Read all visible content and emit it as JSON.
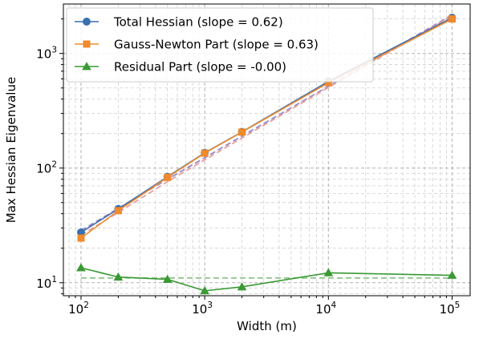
{
  "chart_data": {
    "type": "line",
    "xlabel": "Width (m)",
    "ylabel": "Max Hessian Eigenvalue",
    "xscale": "log",
    "yscale": "log",
    "xlim": [
      72,
      140000
    ],
    "ylim": [
      7.7,
      2700
    ],
    "grid": "major and minor, dashed",
    "legend_position": "top-left",
    "x_ticks": [
      {
        "value": 100,
        "base": "10",
        "exp": "2"
      },
      {
        "value": 1000,
        "base": "10",
        "exp": "3"
      },
      {
        "value": 10000,
        "base": "10",
        "exp": "4"
      },
      {
        "value": 100000,
        "base": "10",
        "exp": "5"
      }
    ],
    "y_ticks": [
      {
        "value": 10,
        "base": "10",
        "exp": "1"
      },
      {
        "value": 100,
        "base": "10",
        "exp": "2"
      },
      {
        "value": 1000,
        "base": "10",
        "exp": "3"
      }
    ],
    "x": [
      100,
      200,
      500,
      1000,
      2000,
      10000,
      100000
    ],
    "series": [
      {
        "name": "Total Hessian (slope = 0.62)",
        "color": "#3a6fb0",
        "marker": "circle",
        "values": [
          27.5,
          44,
          84,
          136,
          207,
          570,
          2050
        ],
        "fit_values": [
          28.5,
          44.5,
          80,
          123,
          190,
          516,
          2170
        ],
        "fit_color": "#9a86c6"
      },
      {
        "name": "Gauss-Newton Part (slope = 0.63)",
        "color": "#f08a2c",
        "marker": "square",
        "values": [
          24.5,
          42.5,
          83,
          135,
          206,
          555,
          2000
        ],
        "fit_values": [
          26,
          41,
          76,
          118,
          183,
          505,
          2140
        ],
        "fit_color": "#e8a0a0"
      },
      {
        "name": "Residual Part (slope = -0.00)",
        "color": "#3a9a34",
        "marker": "triangle",
        "values": [
          13.5,
          11.2,
          10.7,
          8.5,
          9.2,
          12.2,
          11.6
        ],
        "fit_values": [
          11,
          11,
          11,
          11,
          11,
          11,
          11
        ],
        "fit_color": "#8fc38a"
      }
    ]
  }
}
